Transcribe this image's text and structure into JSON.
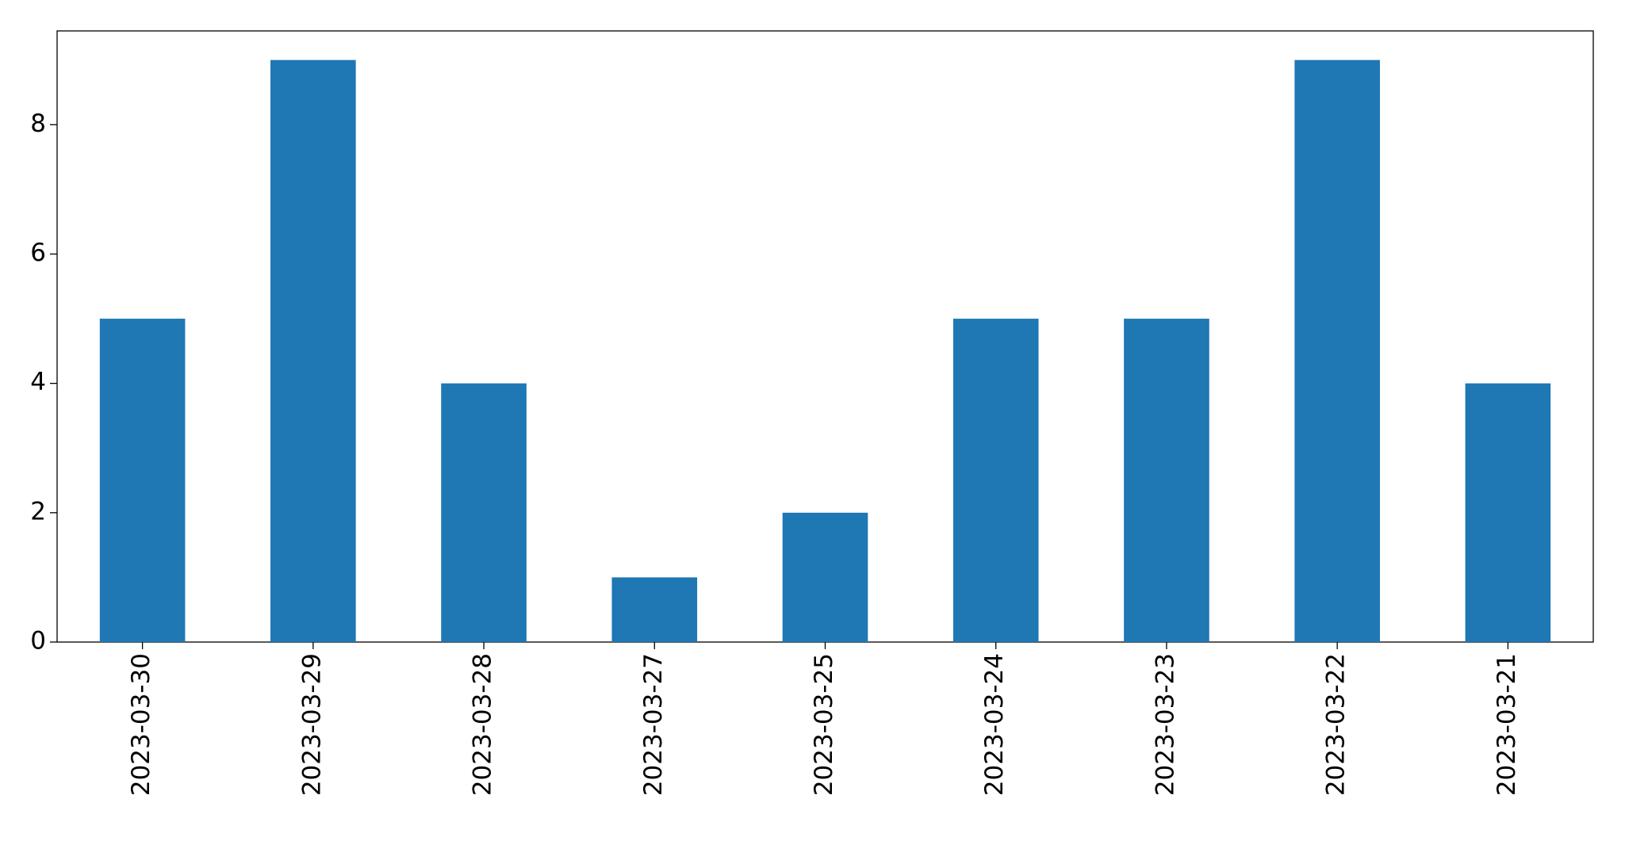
{
  "chart_data": {
    "type": "bar",
    "categories": [
      "2023-03-30",
      "2023-03-29",
      "2023-03-28",
      "2023-03-27",
      "2023-03-25",
      "2023-03-24",
      "2023-03-23",
      "2023-03-22",
      "2023-03-21"
    ],
    "values": [
      5,
      9,
      4,
      1,
      2,
      5,
      5,
      9,
      4
    ],
    "color": "#1f77b4",
    "ylim": [
      0,
      9.45
    ],
    "yticks": [
      0,
      2,
      4,
      6,
      8
    ],
    "grid": false
  }
}
